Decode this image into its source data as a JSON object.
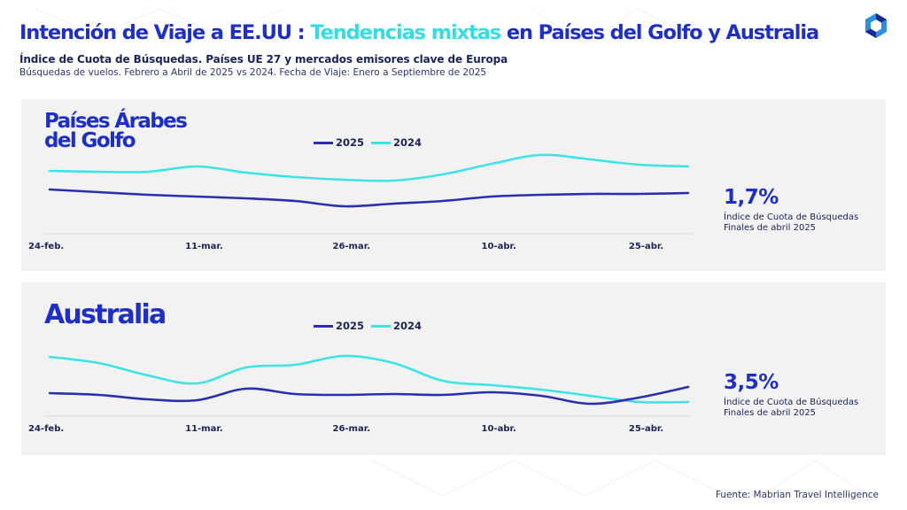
{
  "header": {
    "title_part1": "Intención de Viaje a EE.UU : ",
    "title_part2": "Tendencias mixtas",
    "title_part3": " en Países del Golfo y Australia",
    "subtitle": "Índice de Cuota de Búsquedas. Países UE 27 y mercados emisores clave de Europa",
    "subtitle2": "Búsquedas de vuelos. Febrero a Abril de 2025 vs 2024. Fecha de Viaje: Enero a Septiembre de 2025",
    "logo": "hexagon-logo-icon"
  },
  "colors": {
    "series_2025": "#2a2fae",
    "series_2024": "#3ee3e3",
    "accent": "#1f2fc4",
    "panel_bg": "#f2f2f3",
    "axis": "#d9dde8"
  },
  "footer": {
    "source": "Fuente: Mabrian Travel Intelligence"
  },
  "chart_data": [
    {
      "type": "line",
      "title": "Países Árabes del Golfo",
      "title_line1": "Países Árabes",
      "title_line2": "del Golfo",
      "xlabel": "",
      "ylabel": "",
      "tick_labels": [
        "24-feb.",
        "11-mar.",
        "26-mar.",
        "10-abr.",
        "25-abr."
      ],
      "x": [
        "24-feb",
        "1-mar",
        "6-mar",
        "11-mar",
        "16-mar",
        "21-mar",
        "26-mar",
        "31-mar",
        "5-abr",
        "10-abr",
        "15-abr",
        "20-abr",
        "25-abr",
        "29-abr"
      ],
      "ylim": [
        0,
        100
      ],
      "grid": false,
      "legend": "top-center",
      "series": [
        {
          "name": "2025",
          "values": [
            50,
            47,
            44,
            42,
            40,
            37,
            31,
            34,
            37,
            42,
            44,
            45,
            45,
            46
          ]
        },
        {
          "name": "2024",
          "values": [
            71,
            70,
            70,
            76,
            69,
            64,
            61,
            60,
            67,
            79,
            89,
            84,
            78,
            76
          ]
        }
      ],
      "kpi_value": "1,7%",
      "kpi_label_line1": "Índice de Cuota de Búsquedas",
      "kpi_label_line2": "Finales de abril 2025"
    },
    {
      "type": "line",
      "title": "Australia",
      "xlabel": "",
      "ylabel": "",
      "tick_labels": [
        "24-feb.",
        "11-mar.",
        "26-mar.",
        "10-abr.",
        "25-abr."
      ],
      "x": [
        "24-feb",
        "1-mar",
        "6-mar",
        "11-mar",
        "16-mar",
        "21-mar",
        "26-mar",
        "31-mar",
        "5-abr",
        "10-abr",
        "15-abr",
        "20-abr",
        "25-abr",
        "29-abr"
      ],
      "ylim": [
        0,
        100
      ],
      "grid": false,
      "legend": "top-center",
      "series": [
        {
          "name": "2025",
          "values": [
            26,
            24,
            19,
            18,
            31,
            25,
            24,
            25,
            24,
            27,
            23,
            14,
            21,
            33
          ]
        },
        {
          "name": "2024",
          "values": [
            67,
            60,
            46,
            37,
            55,
            58,
            68,
            60,
            40,
            35,
            30,
            23,
            16,
            16
          ]
        }
      ],
      "kpi_value": "3,5%",
      "kpi_label_line1": "Índice de Cuota de Búsquedas",
      "kpi_label_line2": "Finales de abril 2025"
    }
  ]
}
